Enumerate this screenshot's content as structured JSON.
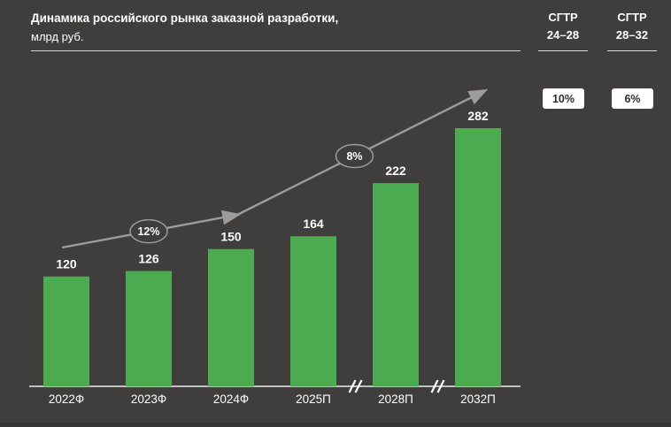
{
  "header": {
    "title": "Динамика российского рынка заказной разработки,",
    "subtitle": "млрд руб."
  },
  "cagr_panel": {
    "columns": [
      {
        "title": "СГТР",
        "range": "24–28",
        "value": "10%"
      },
      {
        "title": "СГТР",
        "range": "28–32",
        "value": "6%"
      }
    ]
  },
  "chart_data": {
    "type": "bar",
    "title": "Динамика российского рынка заказной разработки",
    "ylabel": "млрд руб.",
    "categories": [
      "2022Ф",
      "2023Ф",
      "2024Ф",
      "2025П",
      "2028П",
      "2032П"
    ],
    "values": [
      120,
      126,
      150,
      164,
      222,
      282
    ],
    "ylim": [
      0,
      300
    ],
    "grid": false,
    "bar_color": "#4caa50",
    "trend_line_color": "#9c9c9c",
    "label_color": "#ffffff",
    "background_color": "#403d3d",
    "growth_annotations": [
      {
        "label": "12%",
        "x_pos": 1.0
      },
      {
        "label": "8%",
        "x_pos": 3.5
      }
    ],
    "axis_breaks_between": [
      [
        3,
        4
      ],
      [
        4,
        5
      ]
    ]
  }
}
